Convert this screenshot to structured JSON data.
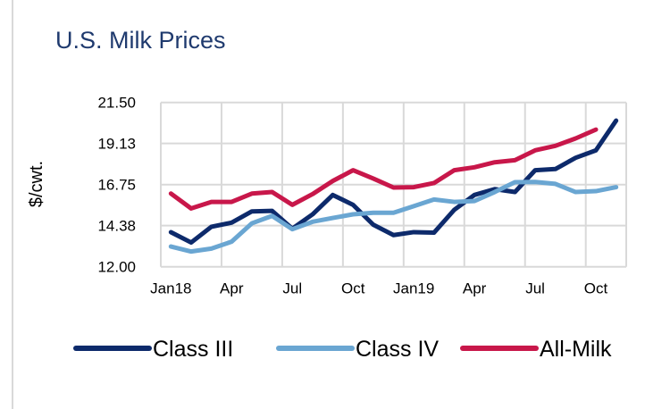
{
  "chart_data": {
    "type": "line",
    "title": "U.S. Milk Prices",
    "xlabel": "",
    "ylabel": "$/cwt.",
    "ylim": [
      12.0,
      21.5
    ],
    "yticks": [
      "12.00",
      "14.38",
      "16.75",
      "19.13",
      "21.50"
    ],
    "x": [
      "Jan18",
      "Feb18",
      "Mar18",
      "Apr18",
      "May18",
      "Jun18",
      "Jul18",
      "Aug18",
      "Sep18",
      "Oct18",
      "Nov18",
      "Dec18",
      "Jan19",
      "Feb19",
      "Mar19",
      "Apr19",
      "May19",
      "Jun19",
      "Jul19",
      "Aug19",
      "Sep19",
      "Oct19",
      "Nov19"
    ],
    "xtick_labels": [
      {
        "index": 0,
        "label": "Jan18"
      },
      {
        "index": 3,
        "label": "Apr"
      },
      {
        "index": 6,
        "label": "Jul"
      },
      {
        "index": 9,
        "label": "Oct"
      },
      {
        "index": 12,
        "label": "Jan19"
      },
      {
        "index": 15,
        "label": "Apr"
      },
      {
        "index": 18,
        "label": "Jul"
      },
      {
        "index": 21,
        "label": "Oct"
      }
    ],
    "grid": true,
    "legend_position": "bottom",
    "series": [
      {
        "name": "Class III",
        "color": "#0d2a6b",
        "values": [
          14.0,
          13.4,
          14.31,
          14.55,
          15.2,
          15.23,
          14.2,
          15.03,
          16.15,
          15.58,
          14.43,
          13.83,
          14.0,
          13.97,
          15.29,
          16.15,
          16.49,
          16.32,
          17.58,
          17.65,
          18.3,
          18.73,
          20.45
        ]
      },
      {
        "name": "Class IV",
        "color": "#6aa6d2",
        "values": [
          13.17,
          12.88,
          13.05,
          13.45,
          14.51,
          14.94,
          14.17,
          14.6,
          14.82,
          15.03,
          15.12,
          15.12,
          15.5,
          15.89,
          15.75,
          15.8,
          16.32,
          16.89,
          16.9,
          16.79,
          16.32,
          16.37,
          16.6
        ]
      },
      {
        "name": "All-Milk",
        "color": "#c8174a",
        "values": [
          16.23,
          15.37,
          15.75,
          15.75,
          16.23,
          16.32,
          15.58,
          16.2,
          16.96,
          17.58,
          17.1,
          16.58,
          16.6,
          16.84,
          17.58,
          17.75,
          18.04,
          18.16,
          18.73,
          18.99,
          19.42,
          19.93,
          null
        ]
      }
    ]
  }
}
